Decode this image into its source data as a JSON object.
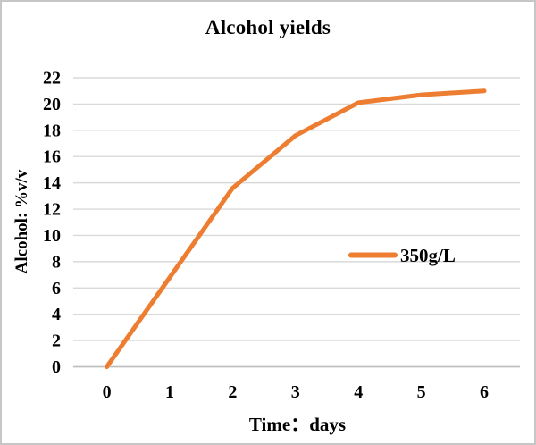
{
  "chart_data": {
    "type": "line",
    "title": "Alcohol yields",
    "xlabel": "Time：days",
    "ylabel": "Alcohol: %v/v",
    "x": [
      0,
      1,
      2,
      3,
      4,
      5,
      6
    ],
    "x_tick_labels": [
      "0",
      "1",
      "2",
      "3",
      "4",
      "5",
      "6"
    ],
    "y_ticks": [
      0,
      2,
      4,
      6,
      8,
      10,
      12,
      14,
      16,
      18,
      20,
      22
    ],
    "ylim": [
      0,
      22
    ],
    "grid": "horizontal",
    "series": [
      {
        "name": "350g/L",
        "values": [
          0,
          6.8,
          13.6,
          17.6,
          20.1,
          20.7,
          21.0
        ],
        "color": "#ED7D31",
        "line_width": 5
      }
    ],
    "legend": {
      "position": "inside-right",
      "entries": [
        {
          "label": "350g/L",
          "color": "#ED7D31"
        }
      ]
    },
    "colors": {
      "gridline": "#D9D9D9",
      "axis_line": "#BFBFBF",
      "text": "#000000",
      "background": "#FFFFFF",
      "frame_border": "#C6C6C6"
    }
  }
}
